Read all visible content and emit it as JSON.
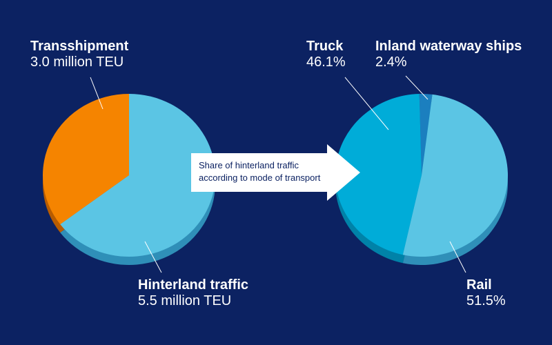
{
  "colors": {
    "background": "#0c2262",
    "transshipment": "#f58400",
    "transshipment_side": "#b85c00",
    "hinterland": "#5bc5e4",
    "hinterland_side": "#2f8fb8",
    "truck": "#00acd8",
    "truck_side": "#0082a8",
    "inland": "#1b7fbf",
    "rail": "#5bc5e4",
    "rail_side": "#2f8fb8",
    "arrow": "#ffffff",
    "leader": "#ffffff"
  },
  "arrow_label": {
    "line1": "Share of hinterland traffic",
    "line2": "according to mode of transport"
  },
  "chart_data": [
    {
      "type": "pie",
      "title": "",
      "unit": "million TEU",
      "slices": [
        {
          "name": "Transshipment",
          "value": 3.0,
          "display": "3.0 million TEU",
          "color_key": "transshipment",
          "side_key": "transshipment_side"
        },
        {
          "name": "Hinterland traffic",
          "value": 5.5,
          "display": "5.5 million TEU",
          "color_key": "hinterland",
          "side_key": "hinterland_side"
        }
      ]
    },
    {
      "type": "pie",
      "title": "",
      "unit": "%",
      "slices": [
        {
          "name": "Truck",
          "value": 46.1,
          "display": "46.1%",
          "color_key": "truck",
          "side_key": "truck_side"
        },
        {
          "name": "Inland waterway ships",
          "value": 2.4,
          "display": "2.4%",
          "color_key": "inland",
          "side_key": "truck_side"
        },
        {
          "name": "Rail",
          "value": 51.5,
          "display": "51.5%",
          "color_key": "rail",
          "side_key": "rail_side"
        }
      ]
    }
  ]
}
